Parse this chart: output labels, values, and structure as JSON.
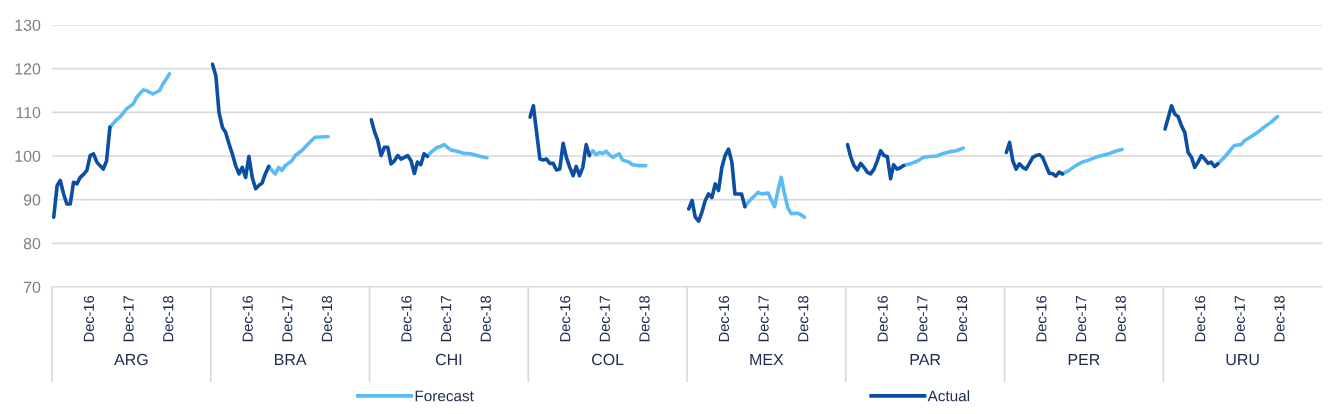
{
  "chart_data": [
    {
      "type": "line",
      "xlabel": "ARG",
      "legend": "bottom",
      "grid": "y",
      "line_style": "solid",
      "marker": "none",
      "xlim": [
        "2015-12-16",
        "2019-12-16"
      ],
      "xticks": [
        {
          "value": "2016-12",
          "label": "Dec-16"
        },
        {
          "value": "2017-12",
          "label": "Dec-17"
        },
        {
          "value": "2018-12",
          "label": "Dec-18"
        }
      ],
      "ylim": [
        70,
        130
      ],
      "yticks": [
        70,
        80,
        90,
        100,
        110,
        120,
        130
      ],
      "x": [
        "2016-01",
        "2016-02",
        "2016-03",
        "2016-04",
        "2016-05",
        "2016-06",
        "2016-07",
        "2016-08",
        "2016-09",
        "2016-10",
        "2016-11",
        "2016-12",
        "2017-01",
        "2017-02",
        "2017-03",
        "2017-04",
        "2017-05",
        "2017-06"
      ],
      "series": [
        {
          "name": "Forecast",
          "color": "#5bbcf5",
          "x": [
            "2017-06",
            "2017-08",
            "2017-09",
            "2017-11",
            "2018-01",
            "2018-02",
            "2018-04",
            "2018-05",
            "2018-07",
            "2018-09",
            "2018-10",
            "2018-11",
            "2018-12"
          ],
          "values": [
            106.6,
            108.3,
            108.9,
            110.8,
            111.9,
            113.4,
            115.1,
            115,
            114.2,
            115,
            116.5,
            117.6,
            118.8
          ]
        },
        {
          "name": "Actual",
          "color": "#0b4ea2",
          "values": [
            86,
            93.2,
            94.4,
            91.3,
            89,
            89,
            94,
            93.6,
            95.1,
            95.8,
            96.7,
            100.1,
            100.5,
            98.6,
            97.8,
            97,
            98.9,
            106.6
          ]
        }
      ]
    },
    {
      "type": "line",
      "xlabel": "BRA",
      "grid": "y",
      "line_style": "solid",
      "marker": "none",
      "tick_labels": "x",
      "xlim": [
        "2015-12-16",
        "2019-12-16"
      ],
      "xticks": [
        {
          "value": "2016-12",
          "label": "Dec-16"
        },
        {
          "value": "2017-12",
          "label": "Dec-17"
        },
        {
          "value": "2018-12",
          "label": "Dec-18"
        }
      ],
      "ylim": [
        70,
        130
      ],
      "yticks": [
        70,
        80,
        90,
        100,
        110,
        120,
        130
      ],
      "x": [
        "2016-01",
        "2016-02",
        "2016-03",
        "2016-04",
        "2016-05",
        "2016-06",
        "2016-07",
        "2016-08",
        "2016-09",
        "2016-10",
        "2016-11",
        "2016-12",
        "2017-01",
        "2017-02",
        "2017-03",
        "2017-04",
        "2017-05",
        "2017-06"
      ],
      "series": [
        {
          "color": "#5bbcf5",
          "x": [
            "2017-06",
            "2017-07",
            "2017-08",
            "2017-09",
            "2017-10",
            "2017-11",
            "2018-01",
            "2018-02",
            "2018-04",
            "2018-06",
            "2018-08",
            "2018-11",
            "2018-12"
          ],
          "values": [
            97.6,
            96.7,
            95.9,
            97.4,
            96.7,
            97.8,
            98.9,
            100.1,
            101.2,
            102.8,
            104.3,
            104.4,
            104.4
          ]
        },
        {
          "color": "#0b4ea2",
          "values": [
            121,
            118.4,
            110,
            106.6,
            105.4,
            102.8,
            100.5,
            97.8,
            95.9,
            97.4,
            95.1,
            99.9,
            95.1,
            92.5,
            93.2,
            93.8,
            95.9,
            97.6
          ]
        }
      ]
    },
    {
      "type": "line",
      "xlabel": "CHI",
      "grid": "y",
      "line_style": "solid",
      "marker": "none",
      "tick_labels": "x",
      "xlim": [
        "2015-12-16",
        "2019-12-16"
      ],
      "xticks": [
        {
          "value": "2016-12",
          "label": "Dec-16"
        },
        {
          "value": "2017-12",
          "label": "Dec-17"
        },
        {
          "value": "2018-12",
          "label": "Dec-18"
        }
      ],
      "ylim": [
        70,
        130
      ],
      "yticks": [
        70,
        80,
        90,
        100,
        110,
        120,
        130
      ],
      "x": [
        "2016-01",
        "2016-02",
        "2016-03",
        "2016-04",
        "2016-05",
        "2016-06",
        "2016-07",
        "2016-08",
        "2016-09",
        "2016-10",
        "2016-11",
        "2016-12",
        "2017-01",
        "2017-02",
        "2017-03",
        "2017-04",
        "2017-05",
        "2017-06"
      ],
      "series": [
        {
          "color": "#5bbcf5",
          "x": [
            "2017-06",
            "2017-07",
            "2017-09",
            "2017-10",
            "2017-11",
            "2018-01",
            "2018-03",
            "2018-05",
            "2018-07",
            "2018-09",
            "2018-11",
            "2018-12"
          ],
          "values": [
            99.9,
            100.8,
            102,
            102.2,
            102.6,
            101.4,
            101.1,
            100.6,
            100.5,
            100.1,
            99.7,
            99.6
          ]
        },
        {
          "color": "#0b4ea2",
          "values": [
            108.3,
            105.5,
            103.5,
            100.1,
            102,
            102,
            98.2,
            98.9,
            100.1,
            99.3,
            99.7,
            100.1,
            98.9,
            96,
            98.6,
            98,
            100.5,
            99.9
          ]
        }
      ]
    },
    {
      "type": "line",
      "xlabel": "COL",
      "grid": "y",
      "line_style": "solid",
      "marker": "none",
      "tick_labels": "x",
      "xlim": [
        "2015-12-16",
        "2019-12-16"
      ],
      "xticks": [
        {
          "value": "2016-12",
          "label": "Dec-16"
        },
        {
          "value": "2017-12",
          "label": "Dec-17"
        },
        {
          "value": "2018-12",
          "label": "Dec-18"
        }
      ],
      "ylim": [
        70,
        130
      ],
      "yticks": [
        70,
        80,
        90,
        100,
        110,
        120,
        130
      ],
      "series": [
        {
          "color": "#5bbcf5",
          "x": [
            "2017-07",
            "2017-08",
            "2017-09",
            "2017-10",
            "2017-11",
            "2017-12",
            "2018-01",
            "2018-02",
            "2018-03",
            "2018-04",
            "2018-05",
            "2018-07",
            "2018-08",
            "2018-10",
            "2018-12"
          ],
          "values": [
            100.1,
            101.2,
            100.3,
            100.8,
            100.6,
            101.1,
            100.3,
            99.7,
            100.1,
            100.5,
            99.1,
            98.6,
            98,
            97.8,
            97.8
          ]
        },
        {
          "color": "#0b4ea2",
          "x": [
            "2016-01",
            "2016-02",
            "2016-04",
            "2016-05",
            "2016-06",
            "2016-07",
            "2016-08",
            "2016-09",
            "2016-10",
            "2016-11",
            "2016-12",
            "2017-01",
            "2017-02",
            "2017-03",
            "2017-04",
            "2017-05",
            "2017-06",
            "2017-07"
          ],
          "values": [
            108.9,
            111.5,
            99.3,
            99.1,
            99.3,
            98.3,
            98.3,
            96.8,
            97,
            102.9,
            99.7,
            97.4,
            95.5,
            97.6,
            95.5,
            97.4,
            102.6,
            100.1
          ]
        }
      ]
    },
    {
      "type": "line",
      "xlabel": "MEX",
      "grid": "y",
      "line_style": "solid",
      "marker": "none",
      "tick_labels": "x",
      "xlim": [
        "2015-12-16",
        "2019-12-16"
      ],
      "xticks": [
        {
          "value": "2016-12",
          "label": "Dec-16"
        },
        {
          "value": "2017-12",
          "label": "Dec-17"
        },
        {
          "value": "2018-12",
          "label": "Dec-18"
        }
      ],
      "ylim": [
        70,
        130
      ],
      "yticks": [
        70,
        80,
        90,
        100,
        110,
        120,
        130
      ],
      "x": [
        "2016-01",
        "2016-02",
        "2016-03",
        "2016-04",
        "2016-05",
        "2016-06",
        "2016-07",
        "2016-08",
        "2016-09",
        "2016-10",
        "2016-11",
        "2016-12",
        "2017-01",
        "2017-02",
        "2017-03",
        "2017-04",
        "2017-05",
        "2017-06"
      ],
      "series": [
        {
          "color": "#5bbcf5",
          "x": [
            "2017-06",
            "2017-07",
            "2017-08",
            "2017-10",
            "2017-11",
            "2018-01",
            "2018-02",
            "2018-03",
            "2018-04",
            "2018-05",
            "2018-06",
            "2018-07",
            "2018-08",
            "2018-10",
            "2018-11",
            "2018-12"
          ],
          "values": [
            88.4,
            89.4,
            90.2,
            91.7,
            91.3,
            91.5,
            89.8,
            88.4,
            92.1,
            95.1,
            91.3,
            88.1,
            86.8,
            86.9,
            86.5,
            86
          ]
        },
        {
          "color": "#0b4ea2",
          "values": [
            87.9,
            89.8,
            86,
            85.1,
            87.1,
            89.8,
            91.3,
            90.5,
            93.6,
            92.1,
            97.4,
            100.1,
            101.6,
            98.6,
            91.3,
            91.3,
            91.3,
            88.4
          ]
        }
      ]
    },
    {
      "type": "line",
      "xlabel": "PAR",
      "grid": "y",
      "line_style": "solid",
      "marker": "none",
      "tick_labels": "x",
      "xlim": [
        "2015-12-16",
        "2019-12-16"
      ],
      "xticks": [
        {
          "value": "2016-12",
          "label": "Dec-16"
        },
        {
          "value": "2017-12",
          "label": "Dec-17"
        },
        {
          "value": "2018-12",
          "label": "Dec-18"
        }
      ],
      "ylim": [
        70,
        130
      ],
      "yticks": [
        70,
        80,
        90,
        100,
        110,
        120,
        130
      ],
      "x": [
        "2016-01",
        "2016-02",
        "2016-03",
        "2016-04",
        "2016-05",
        "2016-06",
        "2016-07",
        "2016-08",
        "2016-09",
        "2016-10",
        "2016-11",
        "2016-12",
        "2017-01",
        "2017-02",
        "2017-03",
        "2017-04",
        "2017-05",
        "2017-06"
      ],
      "series": [
        {
          "color": "#5bbcf5",
          "x": [
            "2017-06",
            "2017-08",
            "2017-10",
            "2017-12",
            "2018-02",
            "2018-04",
            "2018-06",
            "2018-08",
            "2018-10",
            "2018-12"
          ],
          "values": [
            97.8,
            98.2,
            98.8,
            99.7,
            99.9,
            100,
            100.6,
            101,
            101.2,
            101.8
          ]
        },
        {
          "color": "#0b4ea2",
          "values": [
            102.6,
            99.7,
            97.8,
            96.8,
            98.3,
            97.4,
            96.3,
            95.9,
            97,
            98.9,
            101.2,
            100.1,
            99.9,
            94.8,
            98,
            97,
            97.3,
            97.8
          ]
        }
      ]
    },
    {
      "type": "line",
      "xlabel": "PER",
      "grid": "y",
      "line_style": "solid",
      "marker": "none",
      "tick_labels": "x",
      "xlim": [
        "2015-12-16",
        "2019-12-16"
      ],
      "xticks": [
        {
          "value": "2016-12",
          "label": "Dec-16"
        },
        {
          "value": "2017-12",
          "label": "Dec-17"
        },
        {
          "value": "2018-12",
          "label": "Dec-18"
        }
      ],
      "ylim": [
        70,
        130
      ],
      "yticks": [
        70,
        80,
        90,
        100,
        110,
        120,
        130
      ],
      "x": [
        "2016-01",
        "2016-02",
        "2016-03",
        "2016-04",
        "2016-05",
        "2016-06",
        "2016-07",
        "2016-08",
        "2016-09",
        "2016-10",
        "2016-11",
        "2016-12",
        "2017-01",
        "2017-02",
        "2017-03",
        "2017-04",
        "2017-05",
        "2017-06"
      ],
      "series": [
        {
          "color": "#5bbcf5",
          "x": [
            "2017-06",
            "2017-08",
            "2017-10",
            "2017-12",
            "2018-02",
            "2018-04",
            "2018-06",
            "2018-08",
            "2018-10",
            "2018-12"
          ],
          "values": [
            95.9,
            96.7,
            97.8,
            98.6,
            99.1,
            99.7,
            100.1,
            100.5,
            101.1,
            101.5
          ]
        },
        {
          "color": "#0b4ea2",
          "values": [
            100.8,
            103.1,
            98.9,
            97,
            98.2,
            97.4,
            97,
            98.3,
            99.7,
            100.1,
            100.3,
            99.7,
            97.8,
            96,
            96,
            95.4,
            96.3,
            95.9
          ]
        }
      ]
    },
    {
      "type": "line",
      "xlabel": "URU",
      "grid": "y",
      "line_style": "solid",
      "marker": "none",
      "tick_labels": "x",
      "xlim": [
        "2015-12-16",
        "2019-12-16"
      ],
      "xticks": [
        {
          "value": "2016-12",
          "label": "Dec-16"
        },
        {
          "value": "2017-12",
          "label": "Dec-17"
        },
        {
          "value": "2018-12",
          "label": "Dec-18"
        }
      ],
      "ylim": [
        70,
        130
      ],
      "yticks": [
        70,
        80,
        90,
        100,
        110,
        120,
        130
      ],
      "series": [
        {
          "color": "#5bbcf5",
          "x": [
            "2017-05",
            "2017-07",
            "2017-09",
            "2017-10",
            "2017-12",
            "2018-01",
            "2018-03",
            "2018-05",
            "2018-07",
            "2018-09",
            "2018-11"
          ],
          "values": [
            98.2,
            99.7,
            101.6,
            102.4,
            102.6,
            103.5,
            104.4,
            105.4,
            106.6,
            107.7,
            109
          ]
        },
        {
          "color": "#0b4ea2",
          "x": [
            "2016-01",
            "2016-02",
            "2016-03",
            "2016-04",
            "2016-05",
            "2016-06",
            "2016-07",
            "2016-08",
            "2016-09",
            "2016-10",
            "2016-11",
            "2016-12",
            "2017-01",
            "2017-02",
            "2017-03",
            "2017-04",
            "2017-05"
          ],
          "values": [
            106.2,
            108.9,
            111.5,
            109.6,
            109,
            106.9,
            105.4,
            100.8,
            99.7,
            97.4,
            98.6,
            100.1,
            99.3,
            98.3,
            98.6,
            97.6,
            98.2
          ]
        }
      ]
    }
  ]
}
